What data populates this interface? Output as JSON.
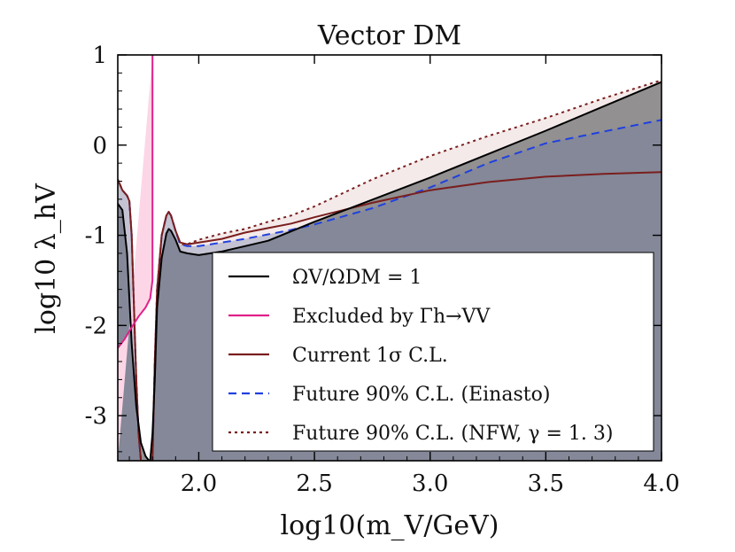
{
  "chart_data": {
    "type": "line",
    "title": "Vector DM",
    "xlabel": "log10(m_V/GeV)",
    "ylabel": "log10 λ_hV",
    "xlim": [
      1.65,
      4.0
    ],
    "ylim": [
      -3.5,
      1.0
    ],
    "xticks": [
      2.0,
      2.5,
      3.0,
      3.5,
      4.0
    ],
    "xtick_labels": [
      "2.0",
      "2.5",
      "3.0",
      "3.5",
      "4.0"
    ],
    "yticks": [
      1,
      0,
      -1,
      -2,
      -3
    ],
    "ytick_labels": [
      "1",
      "0",
      "-1",
      "-2",
      "-3"
    ],
    "legend_placement": "lower-right",
    "series": [
      {
        "name": "Ω_V/Ω_DM = 1",
        "legend_label": "ΩV/ΩDM = 1",
        "color": "#000000",
        "style": "solid",
        "fill": "#808080",
        "fill_opacity": 0.85,
        "x": [
          1.65,
          1.67,
          1.69,
          1.71,
          1.73,
          1.75,
          1.77,
          1.785,
          1.79,
          1.8,
          1.81,
          1.82,
          1.84,
          1.86,
          1.87,
          1.88,
          1.9,
          1.92,
          1.95,
          2.0,
          2.05,
          2.1,
          2.15,
          2.2,
          2.3,
          2.5,
          3.0,
          3.5,
          4.0
        ],
        "y": [
          -0.65,
          -0.72,
          -1.2,
          -2.2,
          -2.9,
          -3.3,
          -3.45,
          -3.5,
          -3.5,
          -3.2,
          -2.6,
          -1.8,
          -1.25,
          -0.98,
          -0.93,
          -0.95,
          -1.05,
          -1.18,
          -1.2,
          -1.22,
          -1.2,
          -1.18,
          -1.15,
          -1.12,
          -1.06,
          -0.85,
          -0.36,
          0.16,
          0.7
        ]
      },
      {
        "name": "Excluded by Γ_h→VV",
        "legend_label": "Excluded by Γh→VV",
        "color": "#e0218a",
        "style": "solid",
        "fill": "#fcd6e6",
        "x": [
          1.65,
          1.68,
          1.71,
          1.74,
          1.77,
          1.79,
          1.8,
          1.8
        ],
        "y": [
          -2.25,
          -2.15,
          -2.02,
          -1.9,
          -1.8,
          -1.7,
          -1.5,
          1.0
        ]
      },
      {
        "name": "Current 1σ C.L.",
        "legend_label": "Current 1σ C.L.",
        "color": "#7a1e1e",
        "style": "solid",
        "x": [
          1.65,
          1.67,
          1.69,
          1.7,
          1.71,
          1.72,
          1.73,
          1.74,
          1.75,
          1.8,
          1.81,
          1.82,
          1.84,
          1.86,
          1.87,
          1.88,
          1.9,
          1.92,
          1.95,
          2.0,
          2.1,
          2.2,
          2.3,
          2.4,
          2.5,
          2.75,
          3.0,
          3.25,
          3.5,
          3.75,
          4.0
        ],
        "y": [
          -0.38,
          -0.5,
          -0.56,
          -0.62,
          -1.0,
          -1.8,
          -2.6,
          -3.2,
          -3.5,
          -3.5,
          -2.4,
          -1.6,
          -1.0,
          -0.78,
          -0.74,
          -0.78,
          -0.95,
          -1.08,
          -1.1,
          -1.08,
          -1.04,
          -0.97,
          -0.92,
          -0.87,
          -0.8,
          -0.64,
          -0.5,
          -0.41,
          -0.35,
          -0.32,
          -0.3
        ]
      },
      {
        "name": "Future 90% C.L. (Einasto)",
        "legend_label": "Future 90% C.L. (Einasto)",
        "color": "#2040e0",
        "style": "dashed",
        "fill": "#6a7aa8",
        "fill_opacity": 0.35,
        "x": [
          1.65,
          1.67,
          1.69,
          1.7,
          1.71,
          1.72,
          1.73,
          1.74,
          1.75,
          1.8,
          1.81,
          1.82,
          1.84,
          1.86,
          1.87,
          1.88,
          1.9,
          1.92,
          1.95,
          2.0,
          2.1,
          2.2,
          2.3,
          2.4,
          2.5,
          2.75,
          3.0,
          3.25,
          3.5,
          3.75,
          4.0
        ],
        "y": [
          -0.38,
          -0.5,
          -0.56,
          -0.62,
          -1.0,
          -1.8,
          -2.6,
          -3.2,
          -3.5,
          -3.5,
          -2.4,
          -1.6,
          -1.0,
          -0.78,
          -0.74,
          -0.78,
          -0.95,
          -1.1,
          -1.12,
          -1.12,
          -1.08,
          -1.04,
          -0.99,
          -0.94,
          -0.88,
          -0.7,
          -0.47,
          -0.2,
          0.02,
          0.15,
          0.28
        ]
      },
      {
        "name": "Future 90% C.L. (NFW, γ = 1.3)",
        "legend_label": "Future 90% C.L. (NFW, γ = 1. 3)",
        "color": "#7a1e1e",
        "style": "dotted",
        "fill": "#f3e8e8",
        "fill_opacity": 0.9,
        "x": [
          1.65,
          1.67,
          1.69,
          1.7,
          1.71,
          1.72,
          1.73,
          1.74,
          1.75,
          1.8,
          1.81,
          1.82,
          1.84,
          1.86,
          1.87,
          1.88,
          1.9,
          1.92,
          1.95,
          2.0,
          2.1,
          2.2,
          2.3,
          2.4,
          2.5,
          2.75,
          3.0,
          3.25,
          3.5,
          3.75,
          4.0
        ],
        "y": [
          -0.38,
          -0.5,
          -0.56,
          -0.62,
          -1.0,
          -1.8,
          -2.6,
          -3.2,
          -3.5,
          -3.5,
          -2.4,
          -1.6,
          -1.0,
          -0.78,
          -0.74,
          -0.78,
          -0.95,
          -1.1,
          -1.1,
          -1.05,
          -0.98,
          -0.93,
          -0.85,
          -0.78,
          -0.68,
          -0.38,
          -0.12,
          0.1,
          0.3,
          0.52,
          0.72
        ]
      }
    ]
  }
}
